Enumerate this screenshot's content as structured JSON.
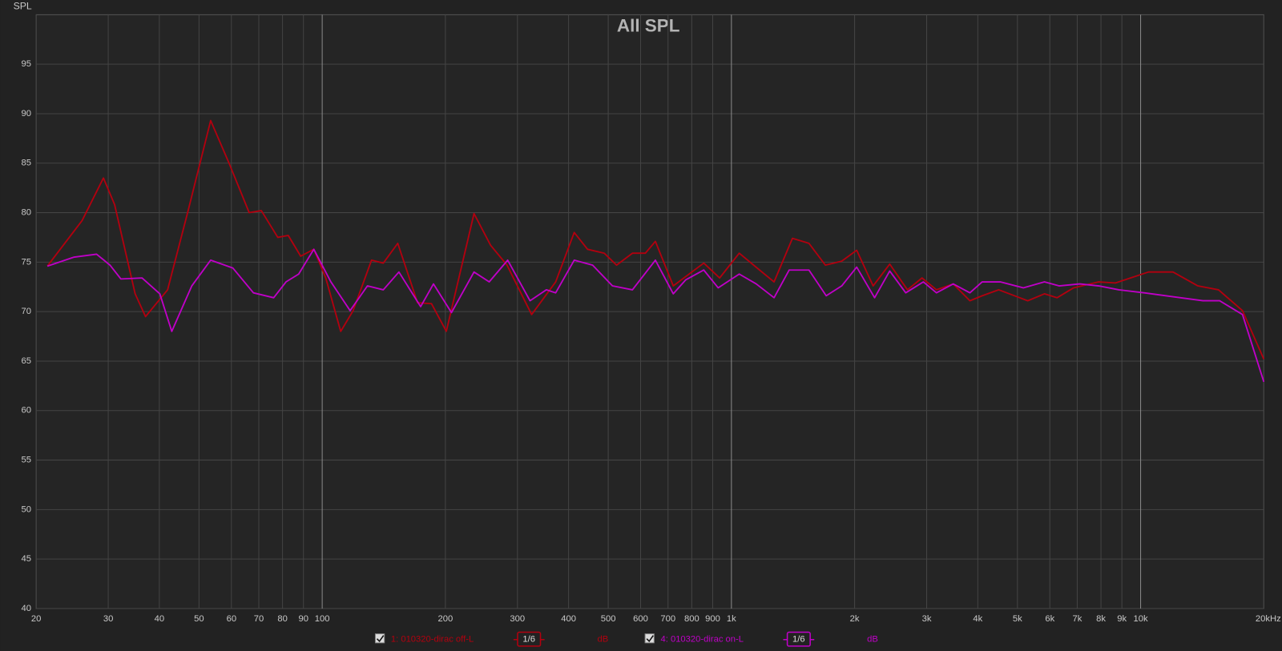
{
  "chart_data": {
    "type": "line",
    "title": "All SPL",
    "y_label": "SPL",
    "log_x": true,
    "grid": true,
    "xlim": [
      20,
      20000
    ],
    "ylim": [
      40,
      100
    ],
    "yticks": [
      40,
      45,
      50,
      55,
      60,
      65,
      70,
      75,
      80,
      85,
      90,
      95
    ],
    "xticks": [
      20,
      30,
      40,
      50,
      60,
      70,
      80,
      90,
      100,
      200,
      300,
      400,
      500,
      600,
      700,
      800,
      900,
      {
        "value": 1000,
        "label": "1k"
      },
      {
        "value": 2000,
        "label": "2k"
      },
      {
        "value": 3000,
        "label": "3k"
      },
      {
        "value": 4000,
        "label": "4k"
      },
      {
        "value": 5000,
        "label": "5k"
      },
      {
        "value": 6000,
        "label": "6k"
      },
      {
        "value": 7000,
        "label": "7k"
      },
      {
        "value": 8000,
        "label": "8k"
      },
      {
        "value": 9000,
        "label": "9k"
      },
      {
        "value": 10000,
        "label": "10k"
      },
      {
        "value": 20000,
        "label": "20kHz"
      }
    ],
    "series": [
      {
        "name": "1: 010320-dirac off-L",
        "color": "#b3000f",
        "smoothing": "1/6",
        "unit": "dB",
        "x": [
          21.3,
          25.9,
          29.2,
          31.1,
          34.9,
          37,
          41.9,
          46.9,
          53.4,
          59.2,
          66.3,
          71,
          77.9,
          82.6,
          88.6,
          95.4,
          102,
          111,
          119,
          132,
          141,
          153,
          171,
          185,
          201,
          235,
          258,
          283,
          325,
          372,
          413,
          445,
          489,
          524,
          573,
          616,
          652,
          721,
          856,
          936,
          1045,
          1172,
          1271,
          1410,
          1547,
          1697,
          1860,
          2024,
          2220,
          2437,
          2693,
          2923,
          3170,
          3484,
          3826,
          4100,
          4500,
          5300,
          5820,
          6250,
          6860,
          7900,
          8680,
          10450,
          12000,
          13800,
          15500,
          17740,
          20000
        ],
        "values": [
          74.6,
          79.2,
          83.5,
          80.8,
          71.8,
          69.5,
          72.2,
          80,
          89.3,
          85,
          80,
          80.2,
          77.5,
          77.7,
          75.6,
          76.3,
          73.4,
          68,
          70.1,
          75.2,
          74.9,
          76.9,
          70.9,
          70.8,
          68,
          79.9,
          76.7,
          74.7,
          69.7,
          73,
          78,
          76.3,
          75.9,
          74.7,
          75.9,
          75.9,
          77.1,
          72.6,
          74.9,
          73.4,
          75.9,
          74.2,
          73,
          77.4,
          76.9,
          74.7,
          75.1,
          76.2,
          72.6,
          74.8,
          72.2,
          73.4,
          72.2,
          72.8,
          71.1,
          71.6,
          72.2,
          71.1,
          71.8,
          71.4,
          72.4,
          73,
          72.9,
          74,
          74,
          72.6,
          72.2,
          70.1,
          65.2
        ]
      },
      {
        "name": "4: 010320-dirac on-L",
        "color": "#c000c8",
        "smoothing": "1/6",
        "unit": "dB",
        "x": [
          21.3,
          24.7,
          28.1,
          30.3,
          32.2,
          36.3,
          40.1,
          42.9,
          48,
          53.4,
          60.5,
          67.9,
          76.1,
          81.6,
          87.6,
          95.4,
          105,
          117,
          129,
          141,
          154,
          174,
          187,
          207,
          235,
          256,
          284,
          322,
          353,
          372,
          413,
          458,
          512,
          573,
          652,
          721,
          773,
          856,
          928,
          1045,
          1150,
          1271,
          1384,
          1547,
          1705,
          1860,
          2024,
          2238,
          2437,
          2667,
          2945,
          3170,
          3484,
          3826,
          4100,
          4540,
          5170,
          5820,
          6320,
          7100,
          7900,
          8850,
          10200,
          12000,
          14200,
          15600,
          17740,
          20000
        ],
        "values": [
          74.6,
          75.5,
          75.8,
          74.7,
          73.3,
          73.4,
          71.8,
          68,
          72.6,
          75.2,
          74.4,
          71.9,
          71.4,
          73,
          73.8,
          76.3,
          73,
          70.1,
          72.6,
          72.2,
          74,
          70.5,
          72.8,
          69.9,
          74,
          73,
          75.2,
          71.1,
          72.2,
          71.9,
          75.2,
          74.7,
          72.6,
          72.2,
          75.2,
          71.8,
          73.2,
          74.2,
          72.4,
          73.8,
          72.8,
          71.4,
          74.2,
          74.2,
          71.6,
          72.6,
          74.5,
          71.4,
          74.1,
          71.9,
          73,
          71.9,
          72.8,
          71.9,
          73,
          73,
          72.4,
          73,
          72.6,
          72.8,
          72.6,
          72.2,
          71.9,
          71.5,
          71.1,
          71.1,
          69.7,
          62.9
        ]
      }
    ]
  }
}
